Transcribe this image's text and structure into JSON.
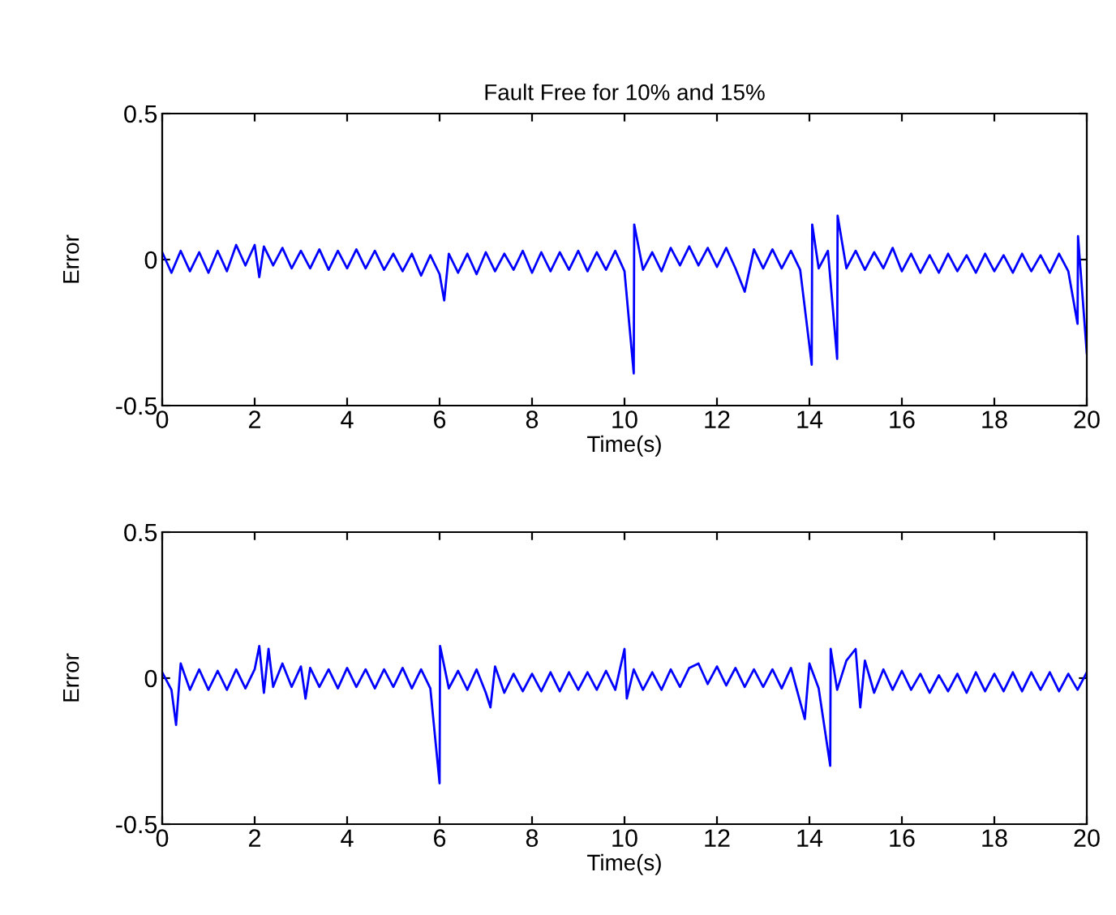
{
  "chart_data": [
    {
      "type": "line",
      "title": "Fault Free for 10% and 15%",
      "xlabel": "Time(s)",
      "ylabel": "Error",
      "xlim": [
        0,
        20
      ],
      "ylim": [
        -0.5,
        0.5
      ],
      "xticks": [
        0,
        2,
        4,
        6,
        8,
        10,
        12,
        14,
        16,
        18,
        20
      ],
      "yticks": [
        -0.5,
        0,
        0.5
      ],
      "grid": false,
      "marker": "none",
      "line_style": "solid",
      "series": [
        {
          "color": "#0000ff",
          "x": [
            0,
            0.2,
            0.4,
            0.6,
            0.8,
            1.0,
            1.2,
            1.4,
            1.6,
            1.8,
            2.0,
            2.1,
            2.2,
            2.4,
            2.6,
            2.8,
            3.0,
            3.2,
            3.4,
            3.6,
            3.8,
            4.0,
            4.2,
            4.4,
            4.6,
            4.8,
            5.0,
            5.2,
            5.4,
            5.6,
            5.8,
            6.0,
            6.1,
            6.2,
            6.4,
            6.6,
            6.8,
            7.0,
            7.2,
            7.4,
            7.6,
            7.8,
            8.0,
            8.2,
            8.4,
            8.6,
            8.8,
            9.0,
            9.2,
            9.4,
            9.6,
            9.8,
            10.0,
            10.2,
            10.21,
            10.4,
            10.6,
            10.8,
            11.0,
            11.2,
            11.4,
            11.6,
            11.8,
            12.0,
            12.2,
            12.4,
            12.6,
            12.8,
            13.0,
            13.2,
            13.4,
            13.6,
            13.8,
            14.05,
            14.06,
            14.2,
            14.4,
            14.6,
            14.61,
            14.8,
            15.0,
            15.2,
            15.4,
            15.6,
            15.8,
            16.0,
            16.2,
            16.4,
            16.6,
            16.8,
            17.0,
            17.2,
            17.4,
            17.6,
            17.8,
            18.0,
            18.2,
            18.4,
            18.6,
            18.8,
            19.0,
            19.2,
            19.4,
            19.6,
            19.8,
            19.81,
            20.0
          ],
          "values": [
            0.025,
            -0.045,
            0.03,
            -0.04,
            0.025,
            -0.045,
            0.03,
            -0.04,
            0.05,
            -0.02,
            0.05,
            -0.06,
            0.045,
            -0.02,
            0.04,
            -0.03,
            0.03,
            -0.03,
            0.035,
            -0.035,
            0.03,
            -0.03,
            0.035,
            -0.03,
            0.03,
            -0.035,
            0.02,
            -0.04,
            0.02,
            -0.055,
            0.015,
            -0.05,
            -0.14,
            0.02,
            -0.045,
            0.02,
            -0.05,
            0.025,
            -0.04,
            0.02,
            -0.035,
            0.03,
            -0.045,
            0.025,
            -0.04,
            0.025,
            -0.035,
            0.03,
            -0.04,
            0.025,
            -0.035,
            0.03,
            -0.04,
            -0.39,
            0.12,
            -0.035,
            0.025,
            -0.04,
            0.04,
            -0.02,
            0.045,
            -0.02,
            0.04,
            -0.025,
            0.04,
            -0.03,
            -0.11,
            0.035,
            -0.03,
            0.035,
            -0.03,
            0.03,
            -0.035,
            -0.36,
            0.12,
            -0.03,
            0.03,
            -0.34,
            0.15,
            -0.03,
            0.03,
            -0.035,
            0.025,
            -0.03,
            0.04,
            -0.04,
            0.02,
            -0.045,
            0.015,
            -0.045,
            0.02,
            -0.04,
            0.015,
            -0.045,
            0.02,
            -0.04,
            0.015,
            -0.045,
            0.02,
            -0.04,
            0.015,
            -0.045,
            0.02,
            -0.04,
            -0.22,
            0.08,
            -0.32
          ]
        }
      ]
    },
    {
      "type": "line",
      "xlabel": "Time(s)",
      "ylabel": "Error",
      "xlim": [
        0,
        20
      ],
      "ylim": [
        -0.5,
        0.5
      ],
      "xticks": [
        0,
        2,
        4,
        6,
        8,
        10,
        12,
        14,
        16,
        18,
        20
      ],
      "yticks": [
        -0.5,
        0,
        0.5
      ],
      "grid": false,
      "marker": "none",
      "line_style": "solid",
      "series": [
        {
          "color": "#0000ff",
          "x": [
            0,
            0.2,
            0.3,
            0.4,
            0.6,
            0.8,
            1.0,
            1.2,
            1.4,
            1.6,
            1.8,
            2.0,
            2.1,
            2.2,
            2.3,
            2.4,
            2.6,
            2.8,
            3.0,
            3.1,
            3.2,
            3.4,
            3.6,
            3.8,
            4.0,
            4.2,
            4.4,
            4.6,
            4.8,
            5.0,
            5.2,
            5.4,
            5.6,
            5.8,
            6.0,
            6.01,
            6.2,
            6.4,
            6.6,
            6.8,
            7.0,
            7.1,
            7.2,
            7.4,
            7.6,
            7.8,
            8.0,
            8.2,
            8.4,
            8.6,
            8.8,
            9.0,
            9.2,
            9.4,
            9.6,
            9.8,
            10.0,
            10.05,
            10.2,
            10.4,
            10.6,
            10.8,
            11.0,
            11.2,
            11.4,
            11.6,
            11.8,
            12.0,
            12.2,
            12.4,
            12.6,
            12.8,
            13.0,
            13.2,
            13.4,
            13.6,
            13.9,
            14.0,
            14.2,
            14.45,
            14.46,
            14.6,
            14.8,
            15.0,
            15.1,
            15.2,
            15.4,
            15.6,
            15.8,
            16.0,
            16.2,
            16.4,
            16.6,
            16.8,
            17.0,
            17.2,
            17.4,
            17.6,
            17.8,
            18.0,
            18.2,
            18.4,
            18.6,
            18.8,
            19.0,
            19.2,
            19.4,
            19.6,
            19.8,
            20.0
          ],
          "values": [
            0.02,
            -0.04,
            -0.16,
            0.05,
            -0.04,
            0.03,
            -0.04,
            0.025,
            -0.04,
            0.03,
            -0.035,
            0.03,
            0.11,
            -0.05,
            0.1,
            -0.03,
            0.05,
            -0.03,
            0.04,
            -0.07,
            0.035,
            -0.03,
            0.03,
            -0.035,
            0.035,
            -0.03,
            0.03,
            -0.035,
            0.03,
            -0.03,
            0.035,
            -0.035,
            0.03,
            -0.035,
            -0.36,
            0.11,
            -0.035,
            0.025,
            -0.04,
            0.03,
            -0.05,
            -0.1,
            0.04,
            -0.05,
            0.015,
            -0.045,
            0.015,
            -0.045,
            0.02,
            -0.045,
            0.02,
            -0.04,
            0.02,
            -0.04,
            0.025,
            -0.04,
            0.1,
            -0.07,
            0.03,
            -0.04,
            0.02,
            -0.04,
            0.03,
            -0.03,
            0.035,
            0.05,
            -0.02,
            0.04,
            -0.025,
            0.035,
            -0.03,
            0.03,
            -0.03,
            0.03,
            -0.035,
            0.035,
            -0.14,
            0.05,
            -0.035,
            -0.3,
            0.1,
            -0.04,
            0.06,
            0.1,
            -0.1,
            0.06,
            -0.05,
            0.03,
            -0.04,
            0.025,
            -0.04,
            0.015,
            -0.05,
            0.01,
            -0.045,
            0.015,
            -0.05,
            0.02,
            -0.045,
            0.015,
            -0.045,
            0.02,
            -0.045,
            0.02,
            -0.04,
            0.02,
            -0.045,
            0.015,
            -0.04,
            0.02
          ]
        }
      ]
    }
  ]
}
